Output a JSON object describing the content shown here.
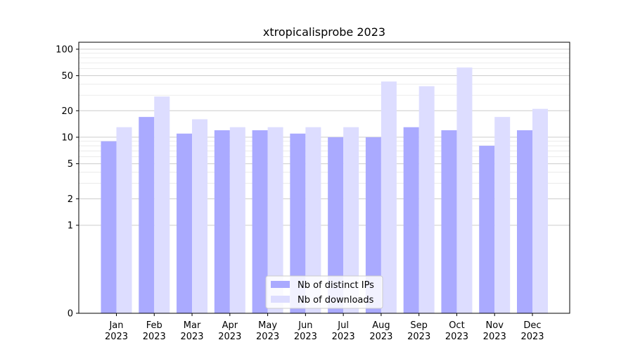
{
  "chart_data": {
    "type": "bar",
    "title": "xtropicalisprobe 2023",
    "xlabel": "",
    "ylabel": "",
    "y_scale": "symlog",
    "ylim": [
      0,
      120
    ],
    "y_ticks": [
      0,
      1,
      2,
      5,
      10,
      20,
      50,
      100
    ],
    "grid": true,
    "legend_position": "bottom-center",
    "categories": [
      {
        "month": "Jan",
        "year": "2023"
      },
      {
        "month": "Feb",
        "year": "2023"
      },
      {
        "month": "Mar",
        "year": "2023"
      },
      {
        "month": "Apr",
        "year": "2023"
      },
      {
        "month": "May",
        "year": "2023"
      },
      {
        "month": "Jun",
        "year": "2023"
      },
      {
        "month": "Jul",
        "year": "2023"
      },
      {
        "month": "Aug",
        "year": "2023"
      },
      {
        "month": "Sep",
        "year": "2023"
      },
      {
        "month": "Oct",
        "year": "2023"
      },
      {
        "month": "Nov",
        "year": "2023"
      },
      {
        "month": "Dec",
        "year": "2023"
      }
    ],
    "series": [
      {
        "name": "Nb of distinct IPs",
        "color": "#aaaaff",
        "values": [
          9,
          17,
          11,
          12,
          12,
          11,
          10,
          10,
          13,
          12,
          8,
          12
        ]
      },
      {
        "name": "Nb of downloads",
        "color": "#ddddff",
        "values": [
          13,
          29,
          16,
          13,
          13,
          13,
          13,
          43,
          38,
          62,
          17,
          21
        ]
      }
    ]
  }
}
